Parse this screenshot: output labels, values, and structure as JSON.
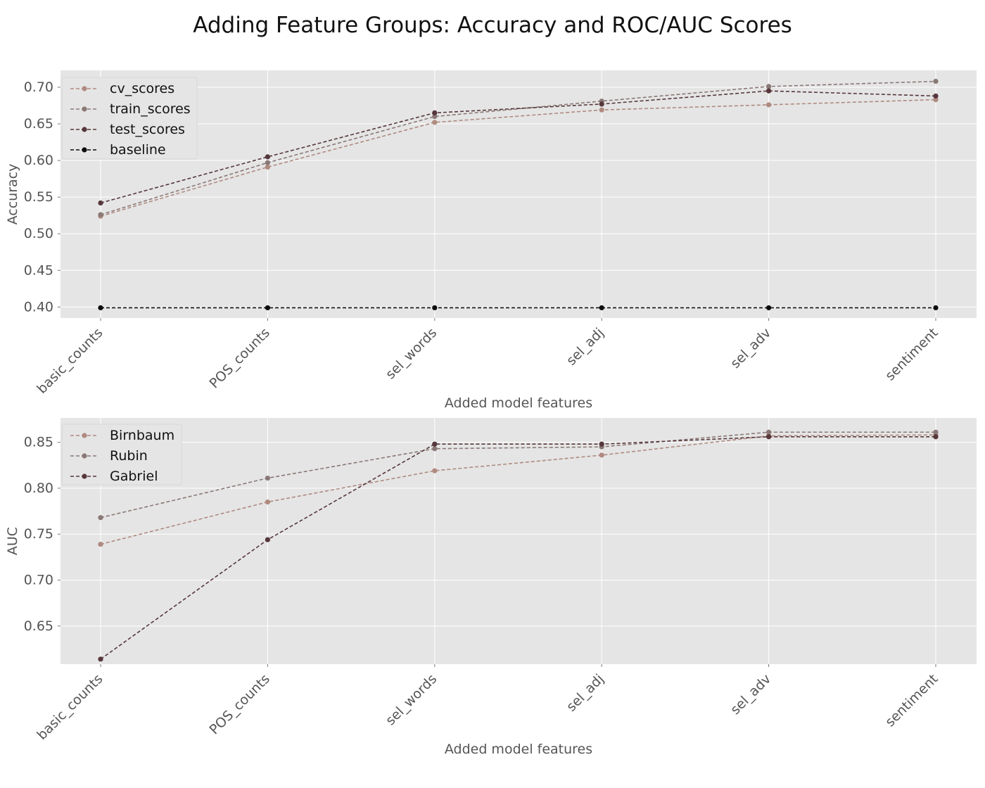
{
  "figure": {
    "title": "Adding Feature Groups: Accuracy and ROC/AUC Scores"
  },
  "colors": {
    "plot_background": "#e5e5e5",
    "grid": "#ffffff",
    "text": "#555555"
  },
  "chart_data": [
    {
      "type": "line",
      "xlabel": "Added model features",
      "ylabel": "Accuracy",
      "categories": [
        "basic_counts",
        "POS_counts",
        "sel_words",
        "sel_adj",
        "sel_adv",
        "sentiment"
      ],
      "ylim": [
        0.385,
        0.723
      ],
      "yticks": [
        0.4,
        0.45,
        0.5,
        0.55,
        0.6,
        0.65,
        0.7
      ],
      "ytick_labels": [
        "0.40",
        "0.45",
        "0.50",
        "0.55",
        "0.60",
        "0.65",
        "0.70"
      ],
      "grid": true,
      "legend_position": "top-left",
      "series": [
        {
          "name": "cv_scores",
          "color": "#b08a80",
          "values": [
            0.524,
            0.591,
            0.652,
            0.669,
            0.676,
            0.683
          ]
        },
        {
          "name": "train_scores",
          "color": "#8a7876",
          "values": [
            0.526,
            0.597,
            0.66,
            0.681,
            0.701,
            0.708
          ]
        },
        {
          "name": "test_scores",
          "color": "#56373b",
          "values": [
            0.542,
            0.605,
            0.665,
            0.677,
            0.695,
            0.688
          ]
        },
        {
          "name": "baseline",
          "color": "#0d0d0d",
          "values": [
            0.399,
            0.399,
            0.399,
            0.399,
            0.399,
            0.399
          ]
        }
      ]
    },
    {
      "type": "line",
      "xlabel": "Added model features",
      "ylabel": "AUC",
      "categories": [
        "basic_counts",
        "POS_counts",
        "sel_words",
        "sel_adj",
        "sel_adv",
        "sentiment"
      ],
      "ylim": [
        0.6085,
        0.8765
      ],
      "yticks": [
        0.65,
        0.7,
        0.75,
        0.8,
        0.85
      ],
      "ytick_labels": [
        "0.65",
        "0.70",
        "0.75",
        "0.80",
        "0.85"
      ],
      "grid": true,
      "legend_position": "top-left",
      "series": [
        {
          "name": "Birnbaum",
          "color": "#b08a80",
          "values": [
            0.739,
            0.785,
            0.819,
            0.836,
            0.857,
            0.858
          ]
        },
        {
          "name": "Rubin",
          "color": "#8a7876",
          "values": [
            0.768,
            0.811,
            0.843,
            0.845,
            0.861,
            0.861
          ]
        },
        {
          "name": "Gabriel",
          "color": "#56373b",
          "values": [
            0.614,
            0.744,
            0.848,
            0.848,
            0.856,
            0.856
          ]
        }
      ]
    }
  ]
}
